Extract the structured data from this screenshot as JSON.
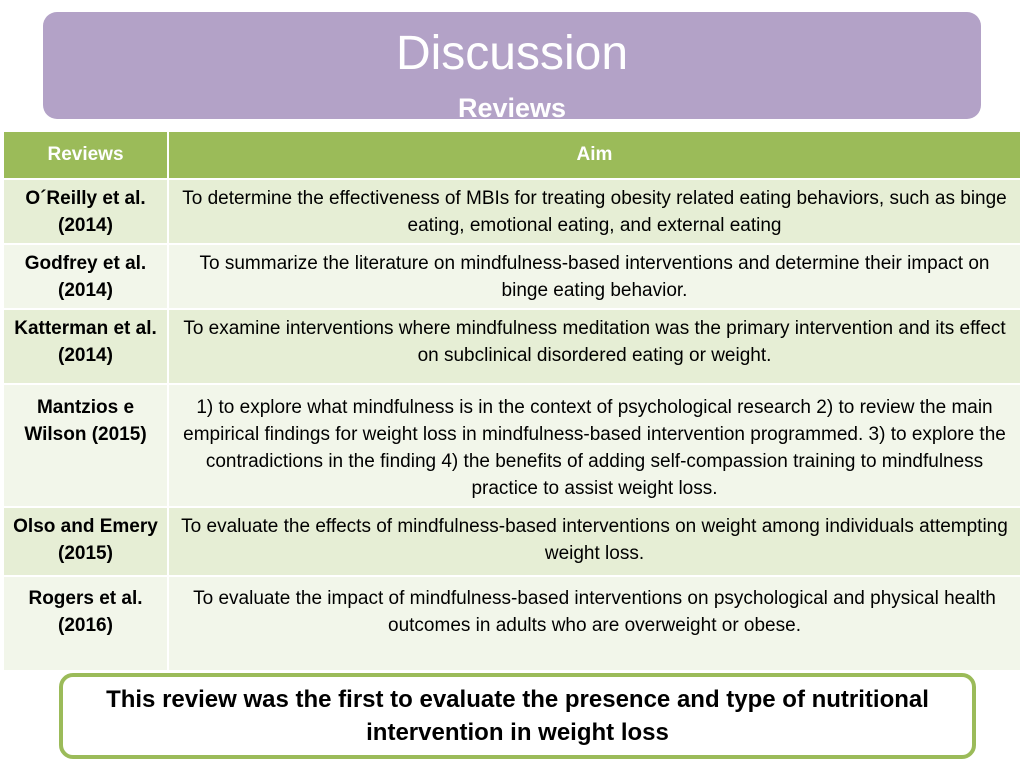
{
  "header": {
    "title": "Discussion",
    "subtitle": "Reviews"
  },
  "table": {
    "columns": [
      "Reviews",
      "Aim"
    ],
    "rows": [
      {
        "review": "O´Reilly et al. (2014)",
        "aim": "To determine the effectiveness of MBIs for treating obesity related eating behaviors, such as binge eating, emotional eating, and external eating"
      },
      {
        "review": "Godfrey et al. (2014)",
        "aim": "To summarize the literature on mindfulness-based interventions and determine their impact on binge eating behavior."
      },
      {
        "review": "Katterman et al. (2014)",
        "aim": "To examine interventions where mindfulness meditation was the primary intervention and its effect on subclinical disordered eating or weight."
      },
      {
        "review": "Mantzios e Wilson (2015)",
        "aim": "1) to explore what mindfulness is in the context of psychological research 2)  to review the main empirical findings for weight loss in mindfulness-based intervention programmed.  3) to explore the contradictions in the finding 4) the benefits of adding self-compassion training to mindfulness practice to assist weight loss."
      },
      {
        "review": "Olso and Emery (2015)",
        "aim": "To evaluate the effects of mindfulness-based interventions on weight among individuals attempting weight loss."
      },
      {
        "review": "Rogers et al. (2016)",
        "aim": "To evaluate the impact of mindfulness-based interventions on psychological and physical health outcomes in adults who are overweight or obese."
      }
    ]
  },
  "conclusion": {
    "text": "This review was the first to evaluate the presence and type of nutritional intervention in weight loss"
  },
  "colors": {
    "banner": "#b3a2c7",
    "header_row": "#9bbb59",
    "row_band_1": "#e6eed5",
    "row_band_2": "#f2f6ea",
    "conclusion_border": "#9bbb59"
  }
}
